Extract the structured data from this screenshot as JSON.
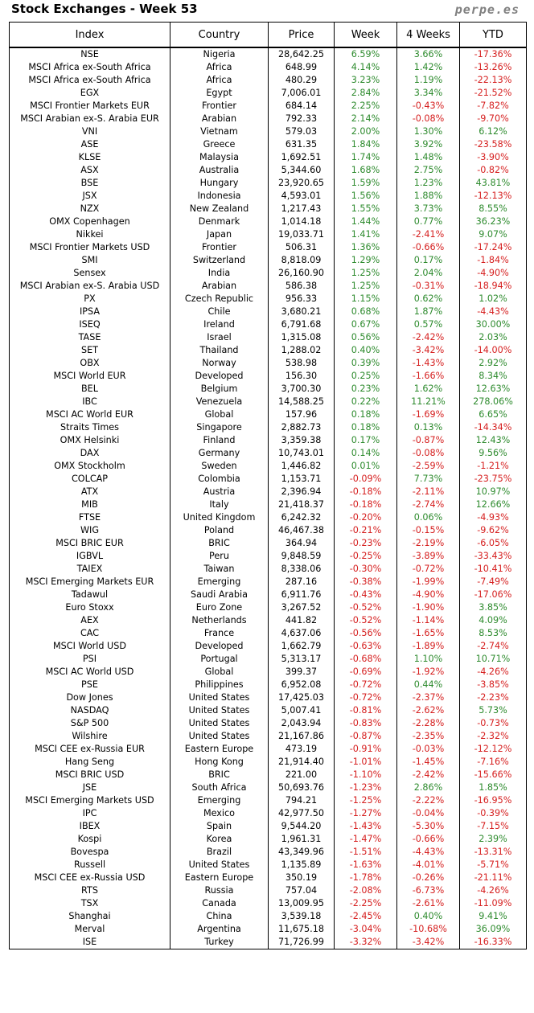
{
  "header": {
    "title": "Stock Exchanges - Week 53",
    "brand": "perpe.es"
  },
  "columns": [
    "Index",
    "Country",
    "Price",
    "Week",
    "4 Weeks",
    "YTD"
  ],
  "colors": {
    "positive": "#2e8b2e",
    "negative": "#d62020"
  },
  "rows": [
    [
      "NSE",
      "Nigeria",
      "28,642.25",
      "6.59%",
      "3.66%",
      "-17.36%"
    ],
    [
      "MSCI Africa ex-South Africa",
      "Africa",
      "648.99",
      "4.14%",
      "1.42%",
      "-13.26%"
    ],
    [
      "MSCI Africa ex-South Africa",
      "Africa",
      "480.29",
      "3.23%",
      "1.19%",
      "-22.13%"
    ],
    [
      "EGX",
      "Egypt",
      "7,006.01",
      "2.84%",
      "3.34%",
      "-21.52%"
    ],
    [
      "MSCI Frontier Markets EUR",
      "Frontier",
      "684.14",
      "2.25%",
      "-0.43%",
      "-7.82%"
    ],
    [
      "MSCI Arabian ex-S. Arabia EUR",
      "Arabian",
      "792.33",
      "2.14%",
      "-0.08%",
      "-9.70%"
    ],
    [
      "VNI",
      "Vietnam",
      "579.03",
      "2.00%",
      "1.30%",
      "6.12%"
    ],
    [
      "ASE",
      "Greece",
      "631.35",
      "1.84%",
      "3.92%",
      "-23.58%"
    ],
    [
      "KLSE",
      "Malaysia",
      "1,692.51",
      "1.74%",
      "1.48%",
      "-3.90%"
    ],
    [
      "ASX",
      "Australia",
      "5,344.60",
      "1.68%",
      "2.75%",
      "-0.82%"
    ],
    [
      "BSE",
      "Hungary",
      "23,920.65",
      "1.59%",
      "1.23%",
      "43.81%"
    ],
    [
      "JSX",
      "Indonesia",
      "4,593.01",
      "1.56%",
      "1.88%",
      "-12.13%"
    ],
    [
      "NZX",
      "New Zealand",
      "1,217.43",
      "1.55%",
      "3.73%",
      "8.55%"
    ],
    [
      "OMX Copenhagen",
      "Denmark",
      "1,014.18",
      "1.44%",
      "0.77%",
      "36.23%"
    ],
    [
      "Nikkei",
      "Japan",
      "19,033.71",
      "1.41%",
      "-2.41%",
      "9.07%"
    ],
    [
      "MSCI Frontier Markets USD",
      "Frontier",
      "506.31",
      "1.36%",
      "-0.66%",
      "-17.24%"
    ],
    [
      "SMI",
      "Switzerland",
      "8,818.09",
      "1.29%",
      "0.17%",
      "-1.84%"
    ],
    [
      "Sensex",
      "India",
      "26,160.90",
      "1.25%",
      "2.04%",
      "-4.90%"
    ],
    [
      "MSCI Arabian ex-S. Arabia USD",
      "Arabian",
      "586.38",
      "1.25%",
      "-0.31%",
      "-18.94%"
    ],
    [
      "PX",
      "Czech Republic",
      "956.33",
      "1.15%",
      "0.62%",
      "1.02%"
    ],
    [
      "IPSA",
      "Chile",
      "3,680.21",
      "0.68%",
      "1.87%",
      "-4.43%"
    ],
    [
      "ISEQ",
      "Ireland",
      "6,791.68",
      "0.67%",
      "0.57%",
      "30.00%"
    ],
    [
      "TASE",
      "Israel",
      "1,315.08",
      "0.56%",
      "-2.42%",
      "2.03%"
    ],
    [
      "SET",
      "Thailand",
      "1,288.02",
      "0.40%",
      "-3.42%",
      "-14.00%"
    ],
    [
      "OBX",
      "Norway",
      "538.98",
      "0.39%",
      "-1.43%",
      "2.92%"
    ],
    [
      "MSCI World EUR",
      "Developed",
      "156.30",
      "0.25%",
      "-1.66%",
      "8.34%"
    ],
    [
      "BEL",
      "Belgium",
      "3,700.30",
      "0.23%",
      "1.62%",
      "12.63%"
    ],
    [
      "IBC",
      "Venezuela",
      "14,588.25",
      "0.22%",
      "11.21%",
      "278.06%"
    ],
    [
      "MSCI AC World EUR",
      "Global",
      "157.96",
      "0.18%",
      "-1.69%",
      "6.65%"
    ],
    [
      "Straits Times",
      "Singapore",
      "2,882.73",
      "0.18%",
      "0.13%",
      "-14.34%"
    ],
    [
      "OMX Helsinki",
      "Finland",
      "3,359.38",
      "0.17%",
      "-0.87%",
      "12.43%"
    ],
    [
      "DAX",
      "Germany",
      "10,743.01",
      "0.14%",
      "-0.08%",
      "9.56%"
    ],
    [
      "OMX Stockholm",
      "Sweden",
      "1,446.82",
      "0.01%",
      "-2.59%",
      "-1.21%"
    ],
    [
      "COLCAP",
      "Colombia",
      "1,153.71",
      "-0.09%",
      "7.73%",
      "-23.75%"
    ],
    [
      "ATX",
      "Austria",
      "2,396.94",
      "-0.18%",
      "-2.11%",
      "10.97%"
    ],
    [
      "MIB",
      "Italy",
      "21,418.37",
      "-0.18%",
      "-2.74%",
      "12.66%"
    ],
    [
      "FTSE",
      "United Kingdom",
      "6,242.32",
      "-0.20%",
      "0.06%",
      "-4.93%"
    ],
    [
      "WIG",
      "Poland",
      "46,467.38",
      "-0.21%",
      "-0.15%",
      "-9.62%"
    ],
    [
      "MSCI BRIC EUR",
      "BRIC",
      "364.94",
      "-0.23%",
      "-2.19%",
      "-6.05%"
    ],
    [
      "IGBVL",
      "Peru",
      "9,848.59",
      "-0.25%",
      "-3.89%",
      "-33.43%"
    ],
    [
      "TAIEX",
      "Taiwan",
      "8,338.06",
      "-0.30%",
      "-0.72%",
      "-10.41%"
    ],
    [
      "MSCI Emerging Markets EUR",
      "Emerging",
      "287.16",
      "-0.38%",
      "-1.99%",
      "-7.49%"
    ],
    [
      "Tadawul",
      "Saudi Arabia",
      "6,911.76",
      "-0.43%",
      "-4.90%",
      "-17.06%"
    ],
    [
      "Euro Stoxx",
      "Euro Zone",
      "3,267.52",
      "-0.52%",
      "-1.90%",
      "3.85%"
    ],
    [
      "AEX",
      "Netherlands",
      "441.82",
      "-0.52%",
      "-1.14%",
      "4.09%"
    ],
    [
      "CAC",
      "France",
      "4,637.06",
      "-0.56%",
      "-1.65%",
      "8.53%"
    ],
    [
      "MSCI World USD",
      "Developed",
      "1,662.79",
      "-0.63%",
      "-1.89%",
      "-2.74%"
    ],
    [
      "PSI",
      "Portugal",
      "5,313.17",
      "-0.68%",
      "1.10%",
      "10.71%"
    ],
    [
      "MSCI AC World USD",
      "Global",
      "399.37",
      "-0.69%",
      "-1.92%",
      "-4.26%"
    ],
    [
      "PSE",
      "Philippines",
      "6,952.08",
      "-0.72%",
      "0.44%",
      "-3.85%"
    ],
    [
      "Dow Jones",
      "United States",
      "17,425.03",
      "-0.72%",
      "-2.37%",
      "-2.23%"
    ],
    [
      "NASDAQ",
      "United States",
      "5,007.41",
      "-0.81%",
      "-2.62%",
      "5.73%"
    ],
    [
      "S&P 500",
      "United States",
      "2,043.94",
      "-0.83%",
      "-2.28%",
      "-0.73%"
    ],
    [
      "Wilshire",
      "United States",
      "21,167.86",
      "-0.87%",
      "-2.35%",
      "-2.32%"
    ],
    [
      "MSCI CEE ex-Russia EUR",
      "Eastern Europe",
      "473.19",
      "-0.91%",
      "-0.03%",
      "-12.12%"
    ],
    [
      "Hang Seng",
      "Hong Kong",
      "21,914.40",
      "-1.01%",
      "-1.45%",
      "-7.16%"
    ],
    [
      "MSCI BRIC USD",
      "BRIC",
      "221.00",
      "-1.10%",
      "-2.42%",
      "-15.66%"
    ],
    [
      "JSE",
      "South Africa",
      "50,693.76",
      "-1.23%",
      "2.86%",
      "1.85%"
    ],
    [
      "MSCI Emerging Markets USD",
      "Emerging",
      "794.21",
      "-1.25%",
      "-2.22%",
      "-16.95%"
    ],
    [
      "IPC",
      "Mexico",
      "42,977.50",
      "-1.27%",
      "-0.04%",
      "-0.39%"
    ],
    [
      "IBEX",
      "Spain",
      "9,544.20",
      "-1.43%",
      "-5.30%",
      "-7.15%"
    ],
    [
      "Kospi",
      "Korea",
      "1,961.31",
      "-1.47%",
      "-0.66%",
      "2.39%"
    ],
    [
      "Bovespa",
      "Brazil",
      "43,349.96",
      "-1.51%",
      "-4.43%",
      "-13.31%"
    ],
    [
      "Russell",
      "United States",
      "1,135.89",
      "-1.63%",
      "-4.01%",
      "-5.71%"
    ],
    [
      "MSCI CEE ex-Russia USD",
      "Eastern Europe",
      "350.19",
      "-1.78%",
      "-0.26%",
      "-21.11%"
    ],
    [
      "RTS",
      "Russia",
      "757.04",
      "-2.08%",
      "-6.73%",
      "-4.26%"
    ],
    [
      "TSX",
      "Canada",
      "13,009.95",
      "-2.25%",
      "-2.61%",
      "-11.09%"
    ],
    [
      "Shanghai",
      "China",
      "3,539.18",
      "-2.45%",
      "0.40%",
      "9.41%"
    ],
    [
      "Merval",
      "Argentina",
      "11,675.18",
      "-3.04%",
      "-10.68%",
      "36.09%"
    ],
    [
      "ISE",
      "Turkey",
      "71,726.99",
      "-3.32%",
      "-3.42%",
      "-16.33%"
    ]
  ]
}
